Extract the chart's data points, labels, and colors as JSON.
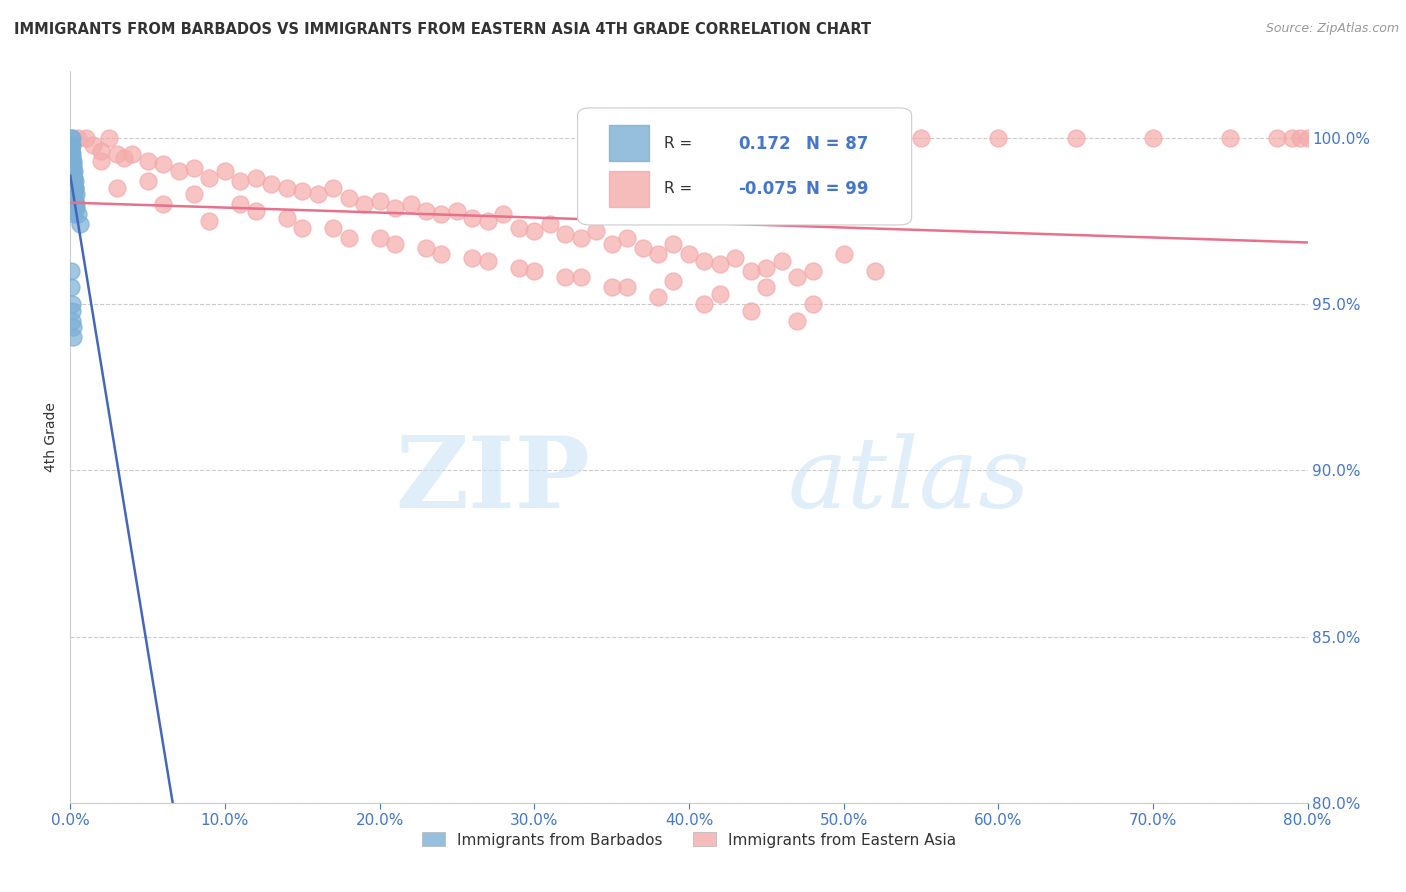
{
  "title": "IMMIGRANTS FROM BARBADOS VS IMMIGRANTS FROM EASTERN ASIA 4TH GRADE CORRELATION CHART",
  "source": "Source: ZipAtlas.com",
  "ylabel": "4th Grade",
  "x_tick_labels": [
    "0.0%",
    "10.0%",
    "20.0%",
    "30.0%",
    "40.0%",
    "50.0%",
    "60.0%",
    "70.0%",
    "80.0%"
  ],
  "y_tick_labels": [
    "80.0%",
    "85.0%",
    "90.0%",
    "95.0%",
    "100.0%"
  ],
  "xlim": [
    0.0,
    80.0
  ],
  "ylim": [
    80.0,
    102.0
  ],
  "legend_label_blue": "Immigrants from Barbados",
  "legend_label_pink": "Immigrants from Eastern Asia",
  "R_blue": 0.172,
  "N_blue": 87,
  "R_pink": -0.075,
  "N_pink": 99,
  "blue_color": "#7BAFD4",
  "pink_color": "#F4AAAA",
  "blue_line_color": "#4466BB",
  "pink_line_color": "#E8708A",
  "title_color": "#333333",
  "axis_label_color": "#333333",
  "tick_color": "#4477CC",
  "blue_x": [
    0.05,
    0.08,
    0.1,
    0.12,
    0.15,
    0.18,
    0.2,
    0.22,
    0.25,
    0.28,
    0.3,
    0.05,
    0.06,
    0.08,
    0.1,
    0.12,
    0.15,
    0.18,
    0.2,
    0.25,
    0.3,
    0.35,
    0.05,
    0.06,
    0.07,
    0.08,
    0.1,
    0.12,
    0.15,
    0.18,
    0.22,
    0.27,
    0.05,
    0.06,
    0.07,
    0.08,
    0.1,
    0.12,
    0.14,
    0.16,
    0.2,
    0.25,
    0.05,
    0.06,
    0.08,
    0.1,
    0.12,
    0.15,
    0.18,
    0.22,
    0.05,
    0.06,
    0.07,
    0.09,
    0.11,
    0.13,
    0.16,
    0.2,
    0.05,
    0.06,
    0.08,
    0.1,
    0.12,
    0.15,
    0.18,
    0.05,
    0.06,
    0.08,
    0.1,
    0.12,
    0.15,
    0.3,
    0.35,
    0.4,
    0.5,
    0.6,
    0.05,
    0.06,
    0.08,
    0.1,
    0.12,
    0.15,
    0.18
  ],
  "blue_y": [
    100.0,
    100.0,
    99.8,
    99.5,
    99.3,
    99.2,
    99.1,
    99.0,
    98.8,
    98.7,
    98.5,
    99.8,
    99.6,
    99.4,
    99.2,
    99.0,
    98.8,
    98.6,
    98.5,
    98.3,
    98.1,
    97.9,
    99.7,
    99.5,
    99.3,
    99.1,
    98.9,
    98.7,
    98.5,
    98.3,
    98.1,
    97.8,
    99.6,
    99.4,
    99.2,
    99.0,
    98.8,
    98.6,
    98.4,
    98.2,
    98.0,
    97.7,
    99.5,
    99.3,
    99.1,
    98.9,
    98.7,
    98.5,
    98.3,
    98.0,
    99.4,
    99.2,
    99.0,
    98.8,
    98.6,
    98.4,
    98.1,
    97.8,
    99.3,
    99.1,
    98.9,
    98.7,
    98.5,
    98.2,
    97.9,
    99.2,
    99.0,
    98.8,
    98.6,
    98.3,
    98.0,
    98.5,
    98.3,
    98.0,
    97.7,
    97.4,
    96.0,
    95.5,
    95.0,
    94.8,
    94.5,
    94.3,
    94.0
  ],
  "pink_x": [
    0.5,
    1.0,
    1.5,
    2.0,
    2.5,
    3.0,
    3.5,
    4.0,
    5.0,
    6.0,
    7.0,
    8.0,
    9.0,
    10.0,
    11.0,
    12.0,
    13.0,
    14.0,
    15.0,
    16.0,
    17.0,
    18.0,
    19.0,
    20.0,
    21.0,
    22.0,
    23.0,
    24.0,
    25.0,
    26.0,
    27.0,
    28.0,
    29.0,
    30.0,
    31.0,
    32.0,
    33.0,
    34.0,
    35.0,
    36.0,
    37.0,
    38.0,
    39.0,
    40.0,
    41.0,
    42.0,
    43.0,
    44.0,
    45.0,
    46.0,
    47.0,
    48.0,
    3.0,
    6.0,
    9.0,
    12.0,
    15.0,
    18.0,
    21.0,
    24.0,
    27.0,
    30.0,
    33.0,
    36.0,
    39.0,
    42.0,
    45.0,
    48.0,
    2.0,
    5.0,
    8.0,
    11.0,
    14.0,
    17.0,
    20.0,
    23.0,
    26.0,
    29.0,
    32.0,
    35.0,
    38.0,
    41.0,
    44.0,
    47.0,
    55.0,
    60.0,
    65.0,
    70.0,
    75.0,
    78.0,
    79.0,
    80.0,
    79.5,
    50.0,
    52.0
  ],
  "pink_y": [
    100.0,
    100.0,
    99.8,
    99.6,
    100.0,
    99.5,
    99.4,
    99.5,
    99.3,
    99.2,
    99.0,
    99.1,
    98.8,
    99.0,
    98.7,
    98.8,
    98.6,
    98.5,
    98.4,
    98.3,
    98.5,
    98.2,
    98.0,
    98.1,
    97.9,
    98.0,
    97.8,
    97.7,
    97.8,
    97.6,
    97.5,
    97.7,
    97.3,
    97.2,
    97.4,
    97.1,
    97.0,
    97.2,
    96.8,
    97.0,
    96.7,
    96.5,
    96.8,
    96.5,
    96.3,
    96.2,
    96.4,
    96.0,
    96.1,
    96.3,
    95.8,
    96.0,
    98.5,
    98.0,
    97.5,
    97.8,
    97.3,
    97.0,
    96.8,
    96.5,
    96.3,
    96.0,
    95.8,
    95.5,
    95.7,
    95.3,
    95.5,
    95.0,
    99.3,
    98.7,
    98.3,
    98.0,
    97.6,
    97.3,
    97.0,
    96.7,
    96.4,
    96.1,
    95.8,
    95.5,
    95.2,
    95.0,
    94.8,
    94.5,
    100.0,
    100.0,
    100.0,
    100.0,
    100.0,
    100.0,
    100.0,
    100.0,
    100.0,
    96.5,
    96.0
  ]
}
